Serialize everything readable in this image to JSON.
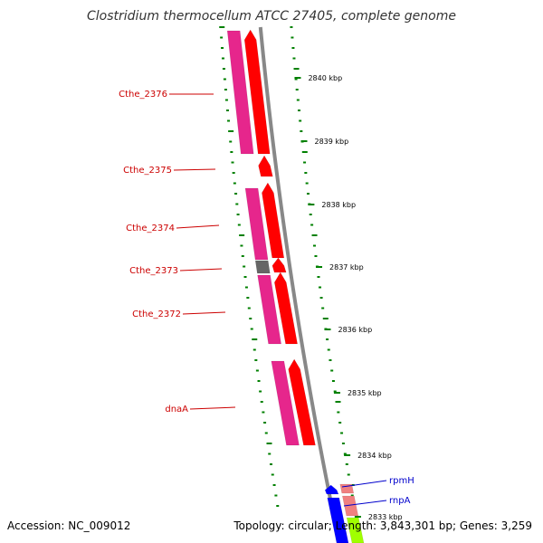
{
  "title": "Clostridium thermocellum ATCC 27405, complete genome",
  "accession": "Accession: NC_009012",
  "topology": "Topology: circular; Length: 3,843,301 bp; Genes: 3,259",
  "colors": {
    "cds_forward": "#ff0000",
    "cds_reverse": "#e6268c",
    "gray_feature": "#666666",
    "rna_blue": "#0000ff",
    "rna_pink": "#f08080",
    "rna_green": "#a0ff00",
    "gc_tick": "#008000",
    "backbone": "#888888",
    "label_red": "#cc0000",
    "label_blue": "#0000cc"
  },
  "gene_labels": [
    {
      "name": "Cthe_2376",
      "color": "red"
    },
    {
      "name": "Cthe_2375",
      "color": "red"
    },
    {
      "name": "Cthe_2374",
      "color": "red"
    },
    {
      "name": "Cthe_2373",
      "color": "red"
    },
    {
      "name": "Cthe_2372",
      "color": "red"
    },
    {
      "name": "dnaA",
      "color": "red"
    },
    {
      "name": "rpmH",
      "color": "blue"
    },
    {
      "name": "rnpA",
      "color": "blue"
    }
  ],
  "scale_ticks": [
    "2840 kbp",
    "2839 kbp",
    "2838 kbp",
    "2837 kbp",
    "2836 kbp",
    "2835 kbp",
    "2834 kbp",
    "2833 kbp"
  ]
}
